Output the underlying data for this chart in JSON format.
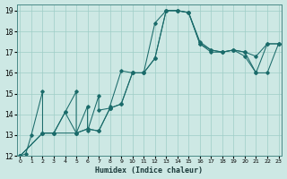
{
  "xlabel": "Humidex (Indice chaleur)",
  "xlim": [
    -0.3,
    23.3
  ],
  "ylim": [
    12,
    19.3
  ],
  "xticks": [
    0,
    1,
    2,
    3,
    4,
    5,
    6,
    7,
    8,
    9,
    10,
    11,
    12,
    13,
    14,
    15,
    16,
    17,
    18,
    19,
    20,
    21,
    22,
    23
  ],
  "yticks": [
    12,
    13,
    14,
    15,
    16,
    17,
    18,
    19
  ],
  "background_color": "#cde8e4",
  "grid_color": "#9ecdc7",
  "line_color": "#1a6b6a",
  "line1_x": [
    0,
    0.5,
    1,
    2,
    2,
    3,
    4,
    5,
    5,
    6,
    6,
    7,
    7,
    8,
    8,
    9,
    10,
    11,
    12,
    13,
    14,
    15,
    16,
    17,
    18,
    19,
    20,
    21,
    22,
    23
  ],
  "line1_y": [
    12.0,
    12.1,
    13.0,
    15.1,
    13.1,
    13.1,
    14.1,
    15.1,
    13.1,
    14.4,
    13.2,
    14.9,
    14.2,
    14.3,
    14.4,
    16.1,
    16.0,
    16.0,
    18.4,
    19.0,
    19.0,
    18.9,
    17.4,
    17.0,
    17.0,
    17.1,
    17.0,
    16.0,
    17.4,
    17.4
  ],
  "line2_x": [
    0,
    2,
    3,
    5,
    6,
    7,
    8,
    9,
    10,
    11,
    12,
    13,
    14,
    15,
    16,
    17,
    18,
    19,
    20,
    21,
    22,
    23
  ],
  "line2_y": [
    12.0,
    13.1,
    13.1,
    13.1,
    13.3,
    13.2,
    14.3,
    14.5,
    16.0,
    16.0,
    16.7,
    19.0,
    19.0,
    18.9,
    17.4,
    17.1,
    17.0,
    17.1,
    16.8,
    16.0,
    16.0,
    17.4
  ],
  "line3_x": [
    0,
    2,
    3,
    4,
    5,
    6,
    7,
    8,
    9,
    10,
    11,
    12,
    13,
    14,
    15,
    16,
    17,
    18,
    19,
    20,
    21,
    22,
    23
  ],
  "line3_y": [
    12.0,
    13.1,
    13.1,
    14.1,
    13.1,
    13.3,
    13.2,
    14.3,
    14.5,
    16.0,
    16.0,
    16.7,
    19.0,
    19.0,
    18.9,
    17.5,
    17.1,
    17.0,
    17.1,
    17.0,
    16.8,
    17.4,
    17.4
  ]
}
